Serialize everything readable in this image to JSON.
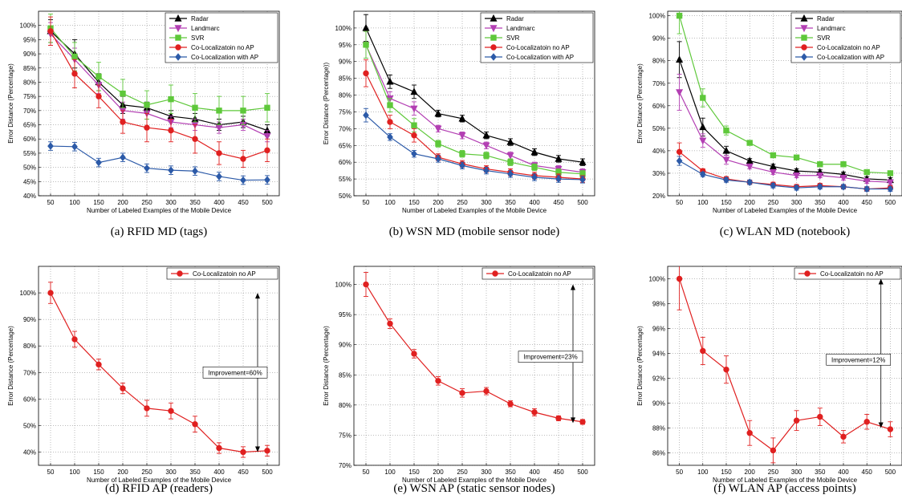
{
  "shared": {
    "xlabel": "Number of Labeled Examples of the Mobile Device",
    "ylabel_pct": "Error Distance (Percentage)",
    "ylabel_pct_b": "Error Distance (Percentage))"
  },
  "chart_data": [
    {
      "type": "line",
      "caption": "(a) RFID MD (tags)",
      "x": [
        50,
        100,
        150,
        200,
        250,
        300,
        350,
        400,
        450,
        500
      ],
      "xlim": [
        25,
        525
      ],
      "ylim": [
        40,
        105
      ],
      "yticks": [
        40,
        45,
        50,
        55,
        60,
        65,
        70,
        75,
        80,
        85,
        90,
        95,
        100
      ],
      "legend": "top-right",
      "grid": true,
      "series": [
        {
          "name": "Radar",
          "color": "#000000",
          "marker": "triangle-up",
          "values": [
            98,
            90,
            80,
            72,
            71,
            68,
            67,
            65,
            66,
            63
          ],
          "err": [
            4,
            5,
            3,
            3,
            2,
            2,
            2,
            2,
            2,
            2
          ]
        },
        {
          "name": "Landmarc",
          "color": "#b33fb3",
          "marker": "triangle-down",
          "values": [
            97,
            88,
            79,
            70,
            69,
            66,
            65,
            64,
            65,
            61
          ],
          "err": [
            4,
            4,
            3,
            3,
            2,
            2,
            2,
            2,
            2,
            2
          ]
        },
        {
          "name": "SVR",
          "color": "#5ec83a",
          "marker": "square",
          "values": [
            99,
            89,
            82,
            76,
            72,
            74,
            71,
            70,
            70,
            71
          ],
          "err": [
            5,
            5,
            5,
            5,
            5,
            5,
            5,
            5,
            5,
            5
          ]
        },
        {
          "name": "Co-Localizatoin no AP",
          "color": "#e02020",
          "marker": "circle",
          "values": [
            98,
            83,
            75,
            66,
            64,
            63,
            60,
            55,
            53,
            56
          ],
          "err": [
            5,
            5,
            4,
            4,
            5,
            4,
            5,
            4,
            3,
            4
          ]
        },
        {
          "name": "Co-Localization with AP",
          "color": "#2c5aa8",
          "marker": "diamond",
          "values": [
            57.5,
            57.3,
            51.7,
            53.5,
            49.7,
            49,
            48.7,
            46.8,
            45.5,
            45.6
          ],
          "err": [
            1.5,
            1.5,
            1.5,
            1.5,
            1.5,
            1.5,
            1.5,
            1.5,
            1.5,
            1.5
          ]
        }
      ]
    },
    {
      "type": "line",
      "caption": "(b) WSN MD (mobile sensor node)",
      "x": [
        50,
        100,
        150,
        200,
        250,
        300,
        350,
        400,
        450,
        500
      ],
      "xlim": [
        25,
        525
      ],
      "ylim": [
        50,
        105
      ],
      "yticks": [
        50,
        55,
        60,
        65,
        70,
        75,
        80,
        85,
        90,
        95,
        100
      ],
      "legend": "top-right",
      "grid": true,
      "series": [
        {
          "name": "Radar",
          "color": "#000000",
          "marker": "triangle-up",
          "values": [
            100,
            84,
            81,
            74.5,
            73,
            68,
            66,
            63,
            61,
            60
          ],
          "err": [
            4,
            2,
            2,
            1,
            1,
            1,
            1,
            1,
            1,
            1
          ]
        },
        {
          "name": "Landmarc",
          "color": "#b33fb3",
          "marker": "triangle-down",
          "values": [
            95,
            79,
            76,
            70,
            68,
            65,
            62,
            59,
            58,
            57
          ],
          "err": [
            4,
            2,
            2,
            1,
            1,
            1,
            1,
            1,
            1,
            1
          ]
        },
        {
          "name": "SVR",
          "color": "#5ec83a",
          "marker": "square",
          "values": [
            95,
            77,
            71,
            65.5,
            62.5,
            62,
            60,
            58.5,
            57,
            56.5
          ],
          "err": [
            4,
            2,
            2,
            1,
            1,
            1,
            1,
            1,
            1,
            1
          ]
        },
        {
          "name": "Co-Localizatoin no AP",
          "color": "#e02020",
          "marker": "circle",
          "values": [
            86.5,
            72,
            68,
            61.5,
            59.5,
            58,
            57,
            56,
            55.5,
            55
          ],
          "err": [
            4,
            2,
            2,
            1,
            1,
            1,
            1,
            1,
            1,
            1
          ]
        },
        {
          "name": "Co-Localization with AP",
          "color": "#2c5aa8",
          "marker": "diamond",
          "values": [
            74,
            67.5,
            62.5,
            61,
            59,
            57.5,
            56.5,
            55.5,
            55,
            54.8
          ],
          "err": [
            2,
            1,
            1,
            1,
            1,
            1,
            1,
            1,
            1,
            1
          ]
        }
      ]
    },
    {
      "type": "line",
      "caption": "(c) WLAN MD (notebook)",
      "x": [
        50,
        100,
        150,
        200,
        250,
        300,
        350,
        400,
        450,
        500
      ],
      "xlim": [
        25,
        525
      ],
      "ylim": [
        20,
        102
      ],
      "yticks": [
        20,
        30,
        40,
        50,
        60,
        70,
        80,
        90,
        100
      ],
      "legend": "top-right",
      "grid": true,
      "series": [
        {
          "name": "Radar",
          "color": "#000000",
          "marker": "triangle-up",
          "values": [
            80.5,
            50.5,
            40,
            35.5,
            33,
            31,
            30.5,
            29.5,
            27.5,
            27
          ],
          "err": [
            8,
            4,
            2,
            1,
            1,
            1,
            1,
            1,
            1,
            1
          ]
        },
        {
          "name": "Landmarc",
          "color": "#b33fb3",
          "marker": "triangle-down",
          "values": [
            66,
            44.5,
            36,
            33,
            30.5,
            29,
            29,
            28,
            26.5,
            26
          ],
          "err": [
            8,
            3,
            2,
            1,
            1,
            1,
            1,
            1,
            1,
            1
          ]
        },
        {
          "name": "SVR",
          "color": "#5ec83a",
          "marker": "square",
          "values": [
            100,
            63.5,
            49,
            43.5,
            38,
            37,
            34,
            34,
            30.5,
            30
          ],
          "err": [
            8,
            4,
            2,
            1,
            1,
            1,
            1,
            1,
            1,
            1
          ]
        },
        {
          "name": "Co-Localizatoin no AP",
          "color": "#e02020",
          "marker": "circle",
          "values": [
            39.5,
            31,
            27.5,
            26,
            25,
            24,
            24.5,
            24,
            23,
            23.5
          ],
          "err": [
            4,
            1,
            1,
            1,
            1,
            1,
            1,
            1,
            1,
            1
          ]
        },
        {
          "name": "Co-Localization with AP",
          "color": "#2c5aa8",
          "marker": "diamond",
          "values": [
            35.5,
            29.5,
            27,
            26,
            24.5,
            23.5,
            24,
            24,
            23,
            23
          ],
          "err": [
            2,
            1,
            1,
            1,
            1,
            1,
            1,
            1,
            1,
            1
          ]
        }
      ]
    },
    {
      "type": "line",
      "caption": "(d) RFID AP (readers)",
      "x": [
        50,
        100,
        150,
        200,
        250,
        300,
        350,
        400,
        450,
        500
      ],
      "xlim": [
        25,
        525
      ],
      "ylim": [
        35,
        110
      ],
      "yticks": [
        40,
        50,
        60,
        70,
        80,
        90,
        100
      ],
      "legend": "top-right",
      "grid": true,
      "annotation": {
        "text": "Improvement=60%",
        "x": 480,
        "y_top": 100,
        "y_bottom": 40,
        "label_y": 70
      },
      "series": [
        {
          "name": "Co-Localizatoin no AP",
          "color": "#e02020",
          "marker": "circle",
          "values": [
            100,
            82.5,
            73,
            64,
            56.5,
            55.5,
            50.5,
            41.5,
            40,
            40.5
          ],
          "err": [
            4,
            3,
            2,
            2,
            3,
            3,
            3,
            2,
            2,
            2
          ]
        }
      ]
    },
    {
      "type": "line",
      "caption": "(e) WSN AP (static sensor nodes)",
      "x": [
        50,
        100,
        150,
        200,
        250,
        300,
        350,
        400,
        450,
        500
      ],
      "xlim": [
        25,
        525
      ],
      "ylim": [
        70,
        103
      ],
      "yticks": [
        70,
        75,
        80,
        85,
        90,
        95,
        100
      ],
      "legend": "top-right",
      "grid": true,
      "annotation": {
        "text": "Improvement=23%",
        "x": 480,
        "y_top": 100,
        "y_bottom": 77,
        "label_y": 88
      },
      "series": [
        {
          "name": "Co-Localizatoin no AP",
          "color": "#e02020",
          "marker": "circle",
          "values": [
            100,
            93.5,
            88.5,
            84,
            82,
            82.3,
            80.2,
            78.8,
            77.8,
            77.2
          ],
          "err": [
            2,
            0.8,
            0.7,
            0.7,
            0.7,
            0.6,
            0.5,
            0.6,
            0.4,
            0.4
          ]
        }
      ]
    },
    {
      "type": "line",
      "caption": "(f) WLAN AP (access points)",
      "x": [
        50,
        100,
        150,
        200,
        250,
        300,
        350,
        400,
        450,
        500
      ],
      "xlim": [
        25,
        525
      ],
      "ylim": [
        85,
        101
      ],
      "yticks": [
        86,
        88,
        90,
        92,
        94,
        96,
        98,
        100
      ],
      "legend": "top-right",
      "grid": true,
      "annotation": {
        "text": "Improvement=12%",
        "x": 480,
        "y_top": 100,
        "y_bottom": 88,
        "label_y": 93.5
      },
      "series": [
        {
          "name": "Co-Localizatoin no AP",
          "color": "#e02020",
          "marker": "circle",
          "values": [
            100,
            94.2,
            92.7,
            87.6,
            86.2,
            88.6,
            88.9,
            87.3,
            88.5,
            87.9
          ],
          "err": [
            2.5,
            1.1,
            1.1,
            1,
            1,
            0.8,
            0.7,
            0.5,
            0.6,
            0.6
          ]
        }
      ]
    }
  ]
}
